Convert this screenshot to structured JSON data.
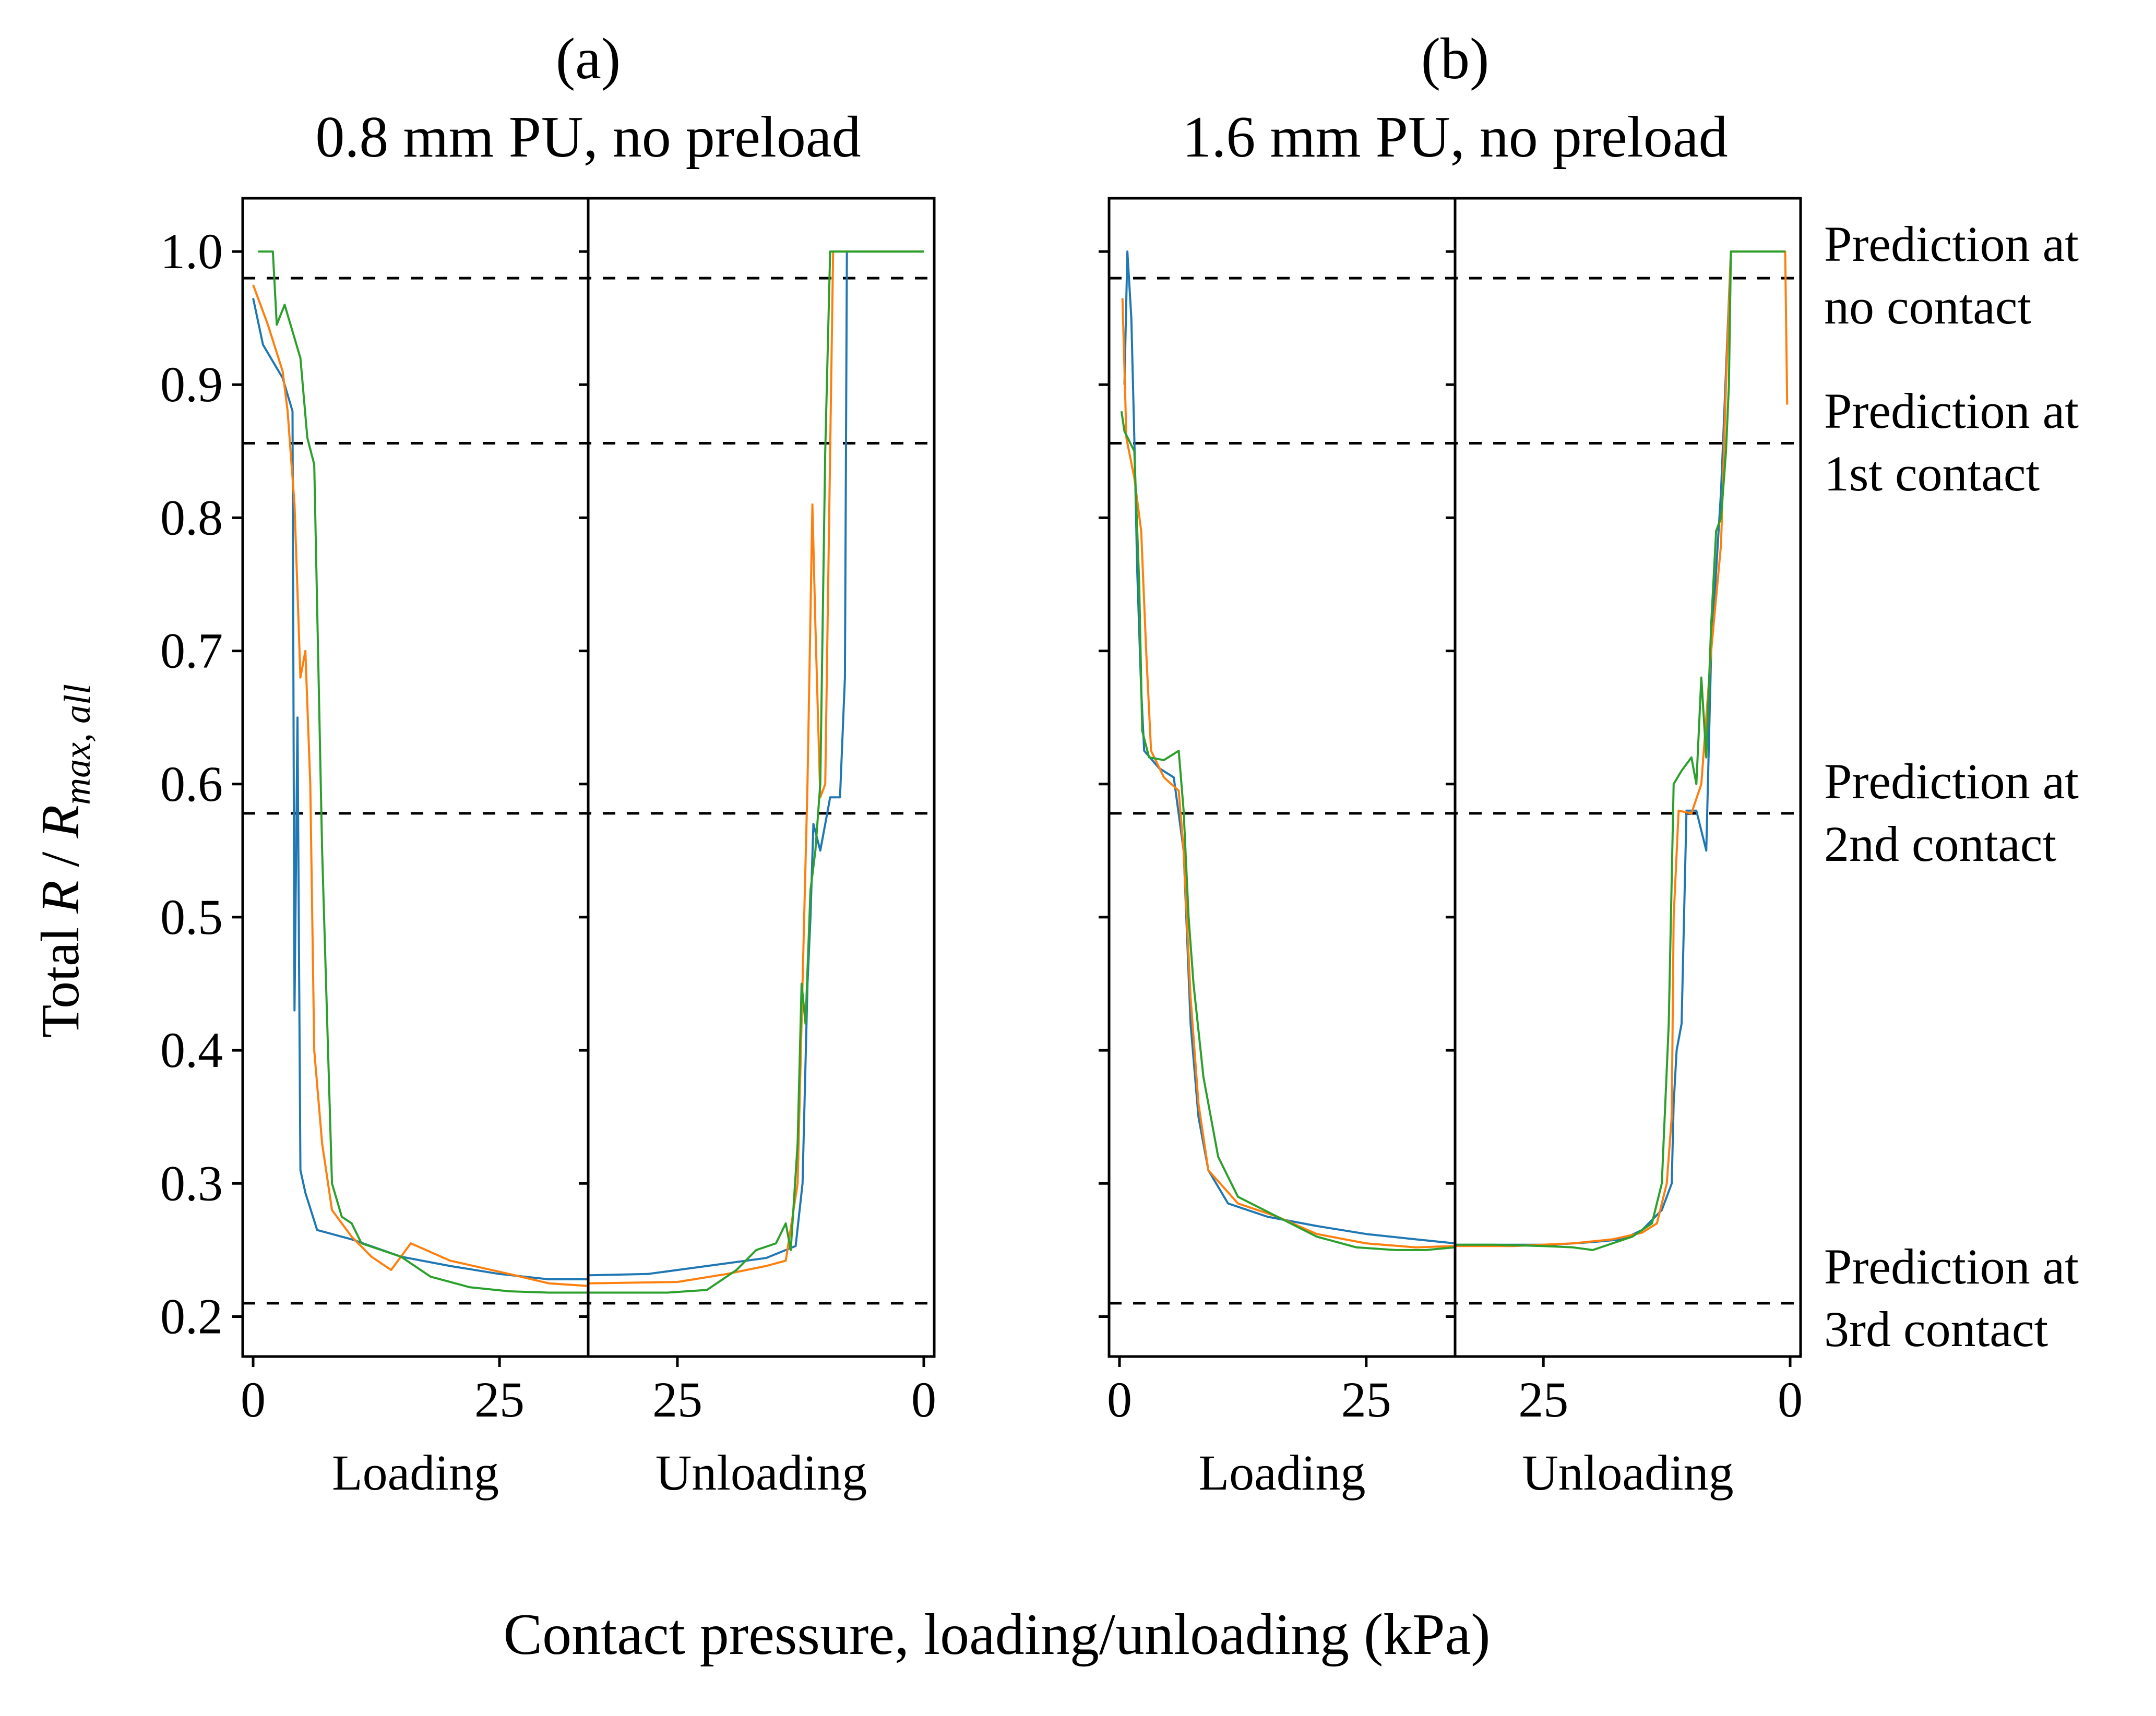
{
  "chart_data": {
    "type": "line",
    "ylabel": "Total R / Rmax,all",
    "ylabel_parts": {
      "prefix": "Total ",
      "r": "R",
      "slash": " / ",
      "rmax": "R",
      "sub": "max, all"
    },
    "xlabel": "Contact pressure, loading/unloading (kPa)",
    "ylim": [
      0.17,
      1.04
    ],
    "yticks": [
      "0.2",
      "0.3",
      "0.4",
      "0.5",
      "0.6",
      "0.7",
      "0.8",
      "0.9",
      "1.0"
    ],
    "xticks": [
      "0",
      "25",
      "25",
      "0"
    ],
    "section_labels": [
      "Loading",
      "Unloading"
    ],
    "colors": {
      "blue": "#1f77b4",
      "orange": "#ff7f0e",
      "green": "#2ca02c"
    },
    "predictions": [
      {
        "value": 0.98,
        "line1": "Prediction at",
        "line2": "no contact"
      },
      {
        "value": 0.856,
        "line1": "Prediction at",
        "line2": "1st contact"
      },
      {
        "value": 0.578,
        "line1": "Prediction at",
        "line2": "2nd contact"
      },
      {
        "value": 0.21,
        "line1": "Prediction at",
        "line2": "3rd contact"
      }
    ],
    "panels": [
      {
        "label": "(a)",
        "title": "0.8 mm PU, no preload",
        "series": [
          {
            "color": "blue",
            "loading": [
              [
                0,
                0.965
              ],
              [
                1,
                0.93
              ],
              [
                3,
                0.905
              ],
              [
                4,
                0.88
              ],
              [
                4.2,
                0.43
              ],
              [
                4.5,
                0.65
              ],
              [
                4.8,
                0.31
              ],
              [
                5.3,
                0.293
              ],
              [
                6.5,
                0.265
              ],
              [
                10,
                0.258
              ],
              [
                15,
                0.245
              ],
              [
                20,
                0.238
              ],
              [
                25,
                0.232
              ],
              [
                30,
                0.228
              ],
              [
                34,
                0.228
              ]
            ],
            "unloading": [
              [
                34,
                0.231
              ],
              [
                28,
                0.232
              ],
              [
                24,
                0.236
              ],
              [
                20,
                0.24
              ],
              [
                16,
                0.244
              ],
              [
                13,
                0.253
              ],
              [
                12.3,
                0.3
              ],
              [
                11.8,
                0.45
              ],
              [
                11.5,
                0.5
              ],
              [
                11.2,
                0.57
              ],
              [
                10.5,
                0.55
              ],
              [
                10,
                0.57
              ],
              [
                9.5,
                0.59
              ],
              [
                8.5,
                0.59
              ],
              [
                8,
                0.68
              ],
              [
                7.8,
                1.0
              ],
              [
                0,
                1.0
              ]
            ]
          },
          {
            "color": "orange",
            "loading": [
              [
                0,
                0.975
              ],
              [
                1.5,
                0.945
              ],
              [
                3,
                0.91
              ],
              [
                3.5,
                0.88
              ],
              [
                4.2,
                0.81
              ],
              [
                4.8,
                0.68
              ],
              [
                5.3,
                0.7
              ],
              [
                5.8,
                0.6
              ],
              [
                6.2,
                0.4
              ],
              [
                7,
                0.33
              ],
              [
                8,
                0.28
              ],
              [
                10,
                0.26
              ],
              [
                12,
                0.245
              ],
              [
                14,
                0.235
              ],
              [
                16,
                0.255
              ],
              [
                20,
                0.242
              ],
              [
                26,
                0.232
              ],
              [
                30,
                0.225
              ],
              [
                34,
                0.223
              ]
            ],
            "unloading": [
              [
                34,
                0.225
              ],
              [
                25,
                0.226
              ],
              [
                20,
                0.232
              ],
              [
                16,
                0.238
              ],
              [
                14,
                0.242
              ],
              [
                12.8,
                0.3
              ],
              [
                12.3,
                0.45
              ],
              [
                11.8,
                0.6
              ],
              [
                11.3,
                0.81
              ],
              [
                11,
                0.72
              ],
              [
                10.5,
                0.59
              ],
              [
                10,
                0.6
              ],
              [
                9.5,
                0.85
              ],
              [
                9.2,
                1.0
              ],
              [
                0,
                1.0
              ]
            ]
          },
          {
            "color": "green",
            "loading": [
              [
                0.5,
                1.0
              ],
              [
                2,
                1.0
              ],
              [
                2.4,
                0.945
              ],
              [
                3.2,
                0.96
              ],
              [
                4,
                0.94
              ],
              [
                4.8,
                0.92
              ],
              [
                5.5,
                0.86
              ],
              [
                6.2,
                0.84
              ],
              [
                7,
                0.55
              ],
              [
                8,
                0.3
              ],
              [
                9,
                0.275
              ],
              [
                10,
                0.27
              ],
              [
                11,
                0.255
              ],
              [
                13,
                0.25
              ],
              [
                15,
                0.245
              ],
              [
                18,
                0.23
              ],
              [
                22,
                0.222
              ],
              [
                26,
                0.219
              ],
              [
                30,
                0.218
              ],
              [
                34,
                0.218
              ]
            ],
            "unloading": [
              [
                34,
                0.218
              ],
              [
                26,
                0.218
              ],
              [
                22,
                0.22
              ],
              [
                19,
                0.235
              ],
              [
                17,
                0.25
              ],
              [
                15,
                0.255
              ],
              [
                14,
                0.27
              ],
              [
                13.5,
                0.25
              ],
              [
                12.8,
                0.33
              ],
              [
                12.4,
                0.45
              ],
              [
                12,
                0.42
              ],
              [
                11.5,
                0.52
              ],
              [
                11,
                0.55
              ],
              [
                10.5,
                0.6
              ],
              [
                10,
                0.85
              ],
              [
                9.5,
                1.0
              ],
              [
                0,
                1.0
              ]
            ]
          }
        ]
      },
      {
        "label": "(b)",
        "title": "1.6 mm PU, no preload",
        "series": [
          {
            "color": "blue",
            "loading": [
              [
                0.5,
                0.9
              ],
              [
                0.8,
                1.0
              ],
              [
                1.2,
                0.95
              ],
              [
                1.5,
                0.86
              ],
              [
                1.8,
                0.76
              ],
              [
                2.2,
                0.67
              ],
              [
                2.5,
                0.625
              ],
              [
                4,
                0.612
              ],
              [
                5.5,
                0.605
              ],
              [
                6.5,
                0.55
              ],
              [
                7.2,
                0.42
              ],
              [
                8,
                0.35
              ],
              [
                9,
                0.31
              ],
              [
                11,
                0.285
              ],
              [
                15,
                0.275
              ],
              [
                20,
                0.268
              ],
              [
                25,
                0.262
              ],
              [
                30,
                0.258
              ],
              [
                34,
                0.255
              ]
            ],
            "unloading": [
              [
                34,
                0.254
              ],
              [
                28,
                0.254
              ],
              [
                24,
                0.254
              ],
              [
                20,
                0.256
              ],
              [
                17,
                0.258
              ],
              [
                15,
                0.265
              ],
              [
                13,
                0.28
              ],
              [
                12,
                0.3
              ],
              [
                11.8,
                0.36
              ],
              [
                11.5,
                0.4
              ],
              [
                11,
                0.42
              ],
              [
                10.5,
                0.58
              ],
              [
                9.5,
                0.58
              ],
              [
                8.5,
                0.55
              ],
              [
                8,
                0.7
              ],
              [
                7,
                0.82
              ],
              [
                6,
                1.0
              ],
              [
                5.5,
                1.0
              ]
            ]
          },
          {
            "color": "orange",
            "loading": [
              [
                0.3,
                0.965
              ],
              [
                0.7,
                0.86
              ],
              [
                1.5,
                0.83
              ],
              [
                2.2,
                0.79
              ],
              [
                2.7,
                0.7
              ],
              [
                3.2,
                0.625
              ],
              [
                4.5,
                0.605
              ],
              [
                6,
                0.595
              ],
              [
                6.5,
                0.55
              ],
              [
                7.2,
                0.44
              ],
              [
                8,
                0.36
              ],
              [
                9,
                0.31
              ],
              [
                12,
                0.285
              ],
              [
                16,
                0.275
              ],
              [
                20,
                0.262
              ],
              [
                25,
                0.255
              ],
              [
                30,
                0.252
              ],
              [
                34,
                0.253
              ]
            ],
            "unloading": [
              [
                34,
                0.253
              ],
              [
                28,
                0.253
              ],
              [
                22,
                0.255
              ],
              [
                18,
                0.258
              ],
              [
                15,
                0.263
              ],
              [
                13.5,
                0.27
              ],
              [
                12.5,
                0.3
              ],
              [
                12,
                0.35
              ],
              [
                11.8,
                0.5
              ],
              [
                11.3,
                0.58
              ],
              [
                10,
                0.578
              ],
              [
                9,
                0.6
              ],
              [
                8,
                0.7
              ],
              [
                7,
                0.78
              ],
              [
                6.5,
                0.9
              ],
              [
                6,
                1.0
              ],
              [
                0.5,
                1.0
              ],
              [
                0.3,
                0.885
              ]
            ]
          },
          {
            "color": "green",
            "loading": [
              [
                0.2,
                0.88
              ],
              [
                0.5,
                0.865
              ],
              [
                1.5,
                0.85
              ],
              [
                2,
                0.75
              ],
              [
                2.3,
                0.64
              ],
              [
                3,
                0.62
              ],
              [
                4.5,
                0.618
              ],
              [
                6,
                0.625
              ],
              [
                6.5,
                0.58
              ],
              [
                7,
                0.5
              ],
              [
                7.5,
                0.45
              ],
              [
                8.5,
                0.38
              ],
              [
                10,
                0.32
              ],
              [
                12,
                0.29
              ],
              [
                16,
                0.275
              ],
              [
                20,
                0.26
              ],
              [
                24,
                0.252
              ],
              [
                28,
                0.25
              ],
              [
                31,
                0.25
              ],
              [
                34,
                0.252
              ]
            ],
            "unloading": [
              [
                34,
                0.254
              ],
              [
                30,
                0.254
              ],
              [
                25,
                0.253
              ],
              [
                22,
                0.252
              ],
              [
                20,
                0.25
              ],
              [
                18,
                0.255
              ],
              [
                16,
                0.26
              ],
              [
                14,
                0.27
              ],
              [
                13,
                0.3
              ],
              [
                12.3,
                0.42
              ],
              [
                11.8,
                0.6
              ],
              [
                11,
                0.61
              ],
              [
                10,
                0.62
              ],
              [
                9.5,
                0.6
              ],
              [
                9,
                0.68
              ],
              [
                8.5,
                0.62
              ],
              [
                8,
                0.72
              ],
              [
                7.5,
                0.79
              ],
              [
                7,
                0.8
              ],
              [
                6.5,
                0.85
              ],
              [
                6.2,
                0.9
              ],
              [
                6,
                1.0
              ],
              [
                0.5,
                1.0
              ]
            ]
          }
        ]
      }
    ]
  }
}
